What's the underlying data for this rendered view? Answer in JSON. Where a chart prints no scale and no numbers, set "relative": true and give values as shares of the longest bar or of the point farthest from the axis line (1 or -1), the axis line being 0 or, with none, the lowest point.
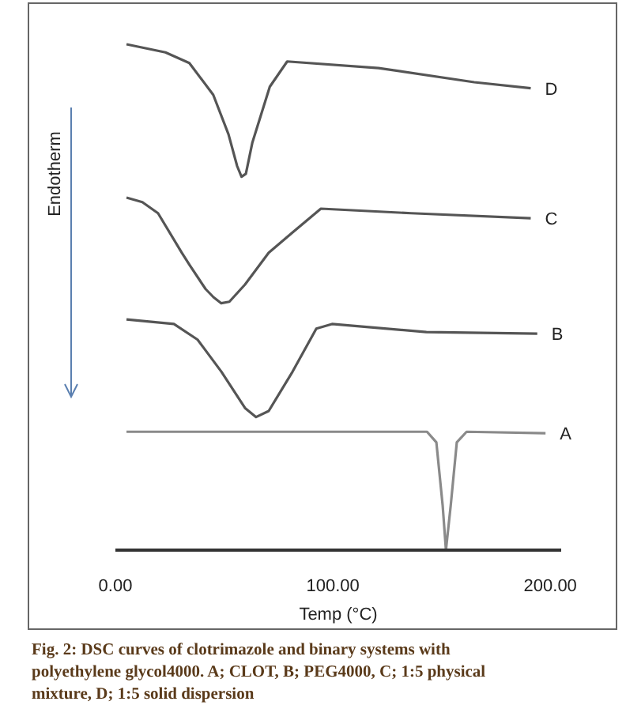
{
  "chart_data": {
    "type": "line",
    "relative": true,
    "xlabel": "Temp (°C)",
    "ylabel": "Endotherm",
    "xlim": [
      0,
      205
    ],
    "xticks": [
      {
        "value": 0,
        "label": "0.00"
      },
      {
        "value": 100,
        "label": "100.00"
      },
      {
        "value": 200,
        "label": "200.00"
      }
    ],
    "series": [
      {
        "name": "D",
        "color": "#555555",
        "x": [
          5.1,
          23,
          34,
          45,
          52,
          56,
          58,
          60,
          63,
          71,
          79,
          121,
          165,
          191
        ],
        "values": [
          1.0,
          0.984,
          0.963,
          0.9,
          0.822,
          0.759,
          0.738,
          0.744,
          0.806,
          0.916,
          0.966,
          0.953,
          0.925,
          0.913
        ]
      },
      {
        "name": "C",
        "color": "#555555",
        "x": [
          5.1,
          12.4,
          19.6,
          30.5,
          34.2,
          41.5,
          45.1,
          48.7,
          52.4,
          59.6,
          70.5,
          81.5,
          94.5,
          136,
          191
        ],
        "values": [
          0.697,
          0.688,
          0.666,
          0.588,
          0.563,
          0.516,
          0.5,
          0.488,
          0.491,
          0.525,
          0.588,
          0.628,
          0.675,
          0.666,
          0.656
        ]
      },
      {
        "name": "B",
        "color": "#555555",
        "x": [
          5.1,
          26.9,
          37.8,
          48.7,
          59.6,
          64.7,
          70.5,
          81.5,
          92.4,
          99.6,
          143,
          194
        ],
        "values": [
          0.456,
          0.447,
          0.416,
          0.353,
          0.281,
          0.263,
          0.275,
          0.353,
          0.438,
          0.447,
          0.431,
          0.428
        ]
      },
      {
        "name": "A",
        "color": "#8a8a8a",
        "x": [
          5.1,
          143.3,
          147.6,
          150.5,
          152,
          154.2,
          157,
          161.5,
          197.8
        ],
        "values": [
          0.234,
          0.234,
          0.213,
          0.088,
          0,
          0.088,
          0.213,
          0.234,
          0.231
        ]
      }
    ],
    "annotations": [
      "Fig. 2: DSC curves of clotrimazole and binary systems with polyethylene glycol4000. A; CLOT, B; PEG4000, C; 1:5 physical mixture, D; 1:5 solid dispersion"
    ]
  }
}
